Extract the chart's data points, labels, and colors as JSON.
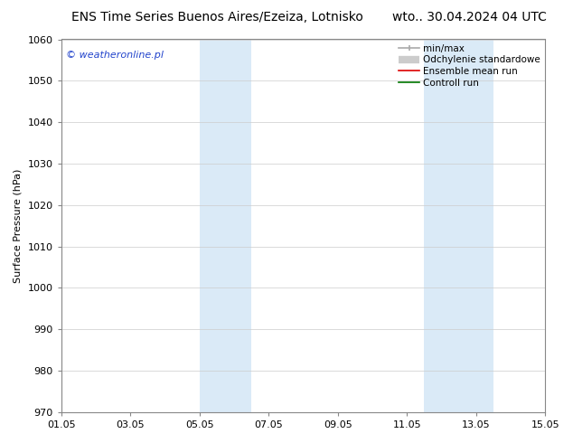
{
  "title_left": "ENS Time Series Buenos Aires/Ezeiza, Lotnisko",
  "title_right": "wto.. 30.04.2024 04 UTC",
  "ylabel": "Surface Pressure (hPa)",
  "ylim": [
    970,
    1060
  ],
  "yticks": [
    970,
    980,
    990,
    1000,
    1010,
    1020,
    1030,
    1040,
    1050,
    1060
  ],
  "xtick_labels": [
    "01.05",
    "03.05",
    "05.05",
    "07.05",
    "09.05",
    "11.05",
    "13.05",
    "15.05"
  ],
  "xtick_positions": [
    0,
    2,
    4,
    6,
    8,
    10,
    12,
    14
  ],
  "xlim": [
    0,
    14
  ],
  "background_color": "#ffffff",
  "plot_bg_color": "#ffffff",
  "shaded_regions": [
    {
      "x_start": 4.0,
      "x_end": 5.5,
      "color": "#daeaf7"
    },
    {
      "x_start": 10.5,
      "x_end": 12.5,
      "color": "#daeaf7"
    }
  ],
  "watermark_text": "© weatheronline.pl",
  "watermark_color": "#2244cc",
  "legend_items": [
    {
      "label": "min/max",
      "color": "#aaaaaa",
      "lw": 1.2,
      "style": "line_with_caps"
    },
    {
      "label": "Odchylenie standardowe",
      "color": "#cccccc",
      "lw": 6,
      "style": "thick"
    },
    {
      "label": "Ensemble mean run",
      "color": "#dd0000",
      "lw": 1.2,
      "style": "line"
    },
    {
      "label": "Controll run",
      "color": "#007700",
      "lw": 1.2,
      "style": "line"
    }
  ],
  "title_fontsize": 10,
  "tick_fontsize": 8,
  "ylabel_fontsize": 8,
  "watermark_fontsize": 8,
  "legend_fontsize": 7.5,
  "spine_color": "#888888",
  "grid_color": "#cccccc",
  "grid_lw": 0.5
}
